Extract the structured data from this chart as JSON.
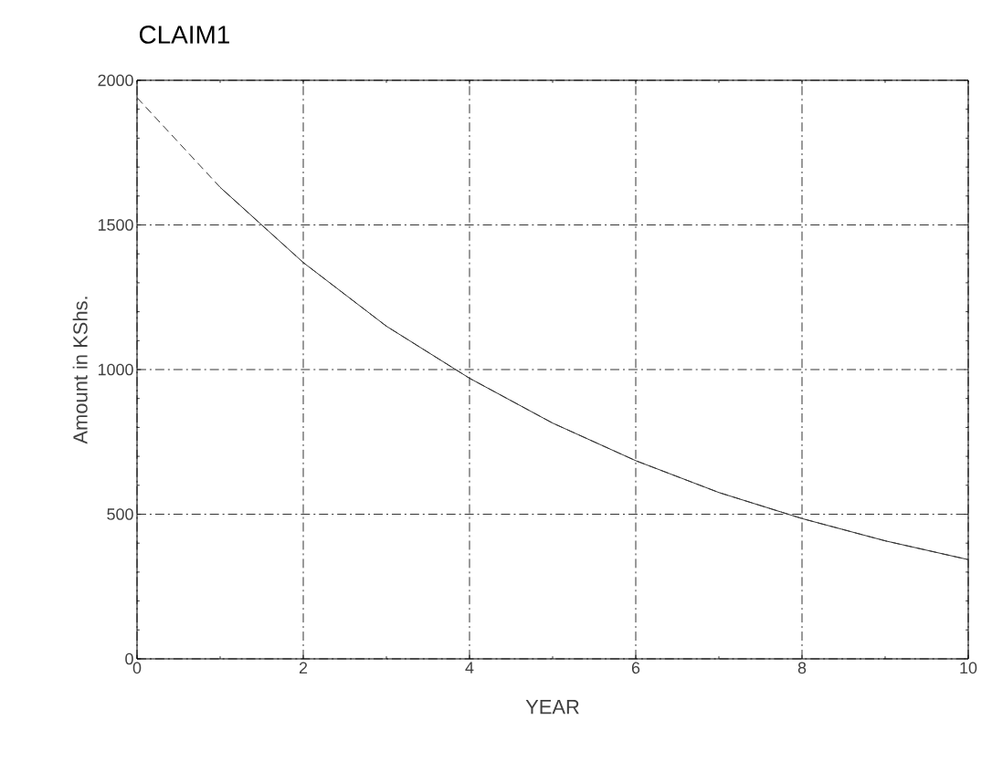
{
  "chart_data": {
    "type": "line",
    "title": "CLAIM1",
    "xlabel": "YEAR",
    "ylabel": "Amount in KShs.",
    "xlim": [
      0,
      10
    ],
    "ylim": [
      0,
      2000
    ],
    "xticks": [
      0,
      2,
      4,
      6,
      8,
      10
    ],
    "yticks": [
      0,
      500,
      1000,
      1500,
      2000
    ],
    "grid": true,
    "series": [
      {
        "color": "#333333",
        "line_style": "dashed",
        "x": [
          0,
          1,
          2,
          3,
          4,
          5,
          6,
          7,
          8,
          9,
          10
        ],
        "values": [
          1940,
          1630,
          1370,
          1150,
          970,
          815,
          685,
          575,
          485,
          408,
          343
        ]
      },
      {
        "color": "#333333",
        "line_style": "solid",
        "x": [
          1,
          2,
          3,
          4,
          5,
          6,
          7,
          8,
          9,
          10
        ],
        "values": [
          1630,
          1370,
          1150,
          970,
          815,
          685,
          575,
          485,
          408,
          343
        ]
      }
    ]
  }
}
